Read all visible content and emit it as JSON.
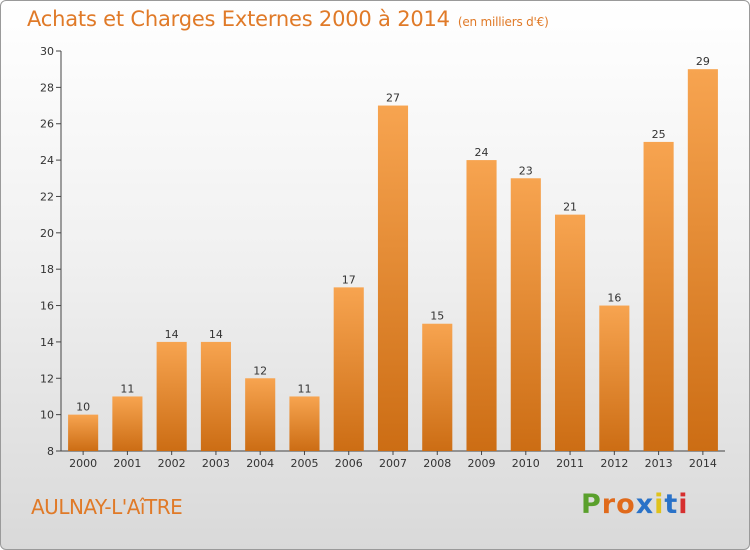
{
  "title": "Achats et Charges Externes 2000 à 2014",
  "unit": "(en milliers d'€)",
  "town": "AULNAY-L'AîTRE",
  "brand": {
    "letters": [
      "P",
      "r",
      "o",
      "x",
      "i",
      "t",
      "i"
    ],
    "colors": [
      "#5aa02c",
      "#e06a1b",
      "#e06a1b",
      "#2a72c8",
      "#e0c21b",
      "#2a72c8",
      "#d62f2f"
    ]
  },
  "colors": {
    "bar_light": "#f7a450",
    "bar_dark": "#cc6d14",
    "accent": "#e07a28"
  },
  "chart_data": {
    "type": "bar",
    "categories": [
      "2000",
      "2001",
      "2002",
      "2003",
      "2004",
      "2005",
      "2006",
      "2007",
      "2008",
      "2009",
      "2010",
      "2011",
      "2012",
      "2013",
      "2014"
    ],
    "values": [
      10,
      11,
      14,
      14,
      12,
      11,
      17,
      27,
      15,
      24,
      23,
      21,
      16,
      25,
      29
    ],
    "ylim": [
      8,
      30
    ],
    "yticks": [
      8,
      10,
      12,
      14,
      16,
      18,
      20,
      22,
      24,
      26,
      28,
      30
    ],
    "grid": false
  }
}
